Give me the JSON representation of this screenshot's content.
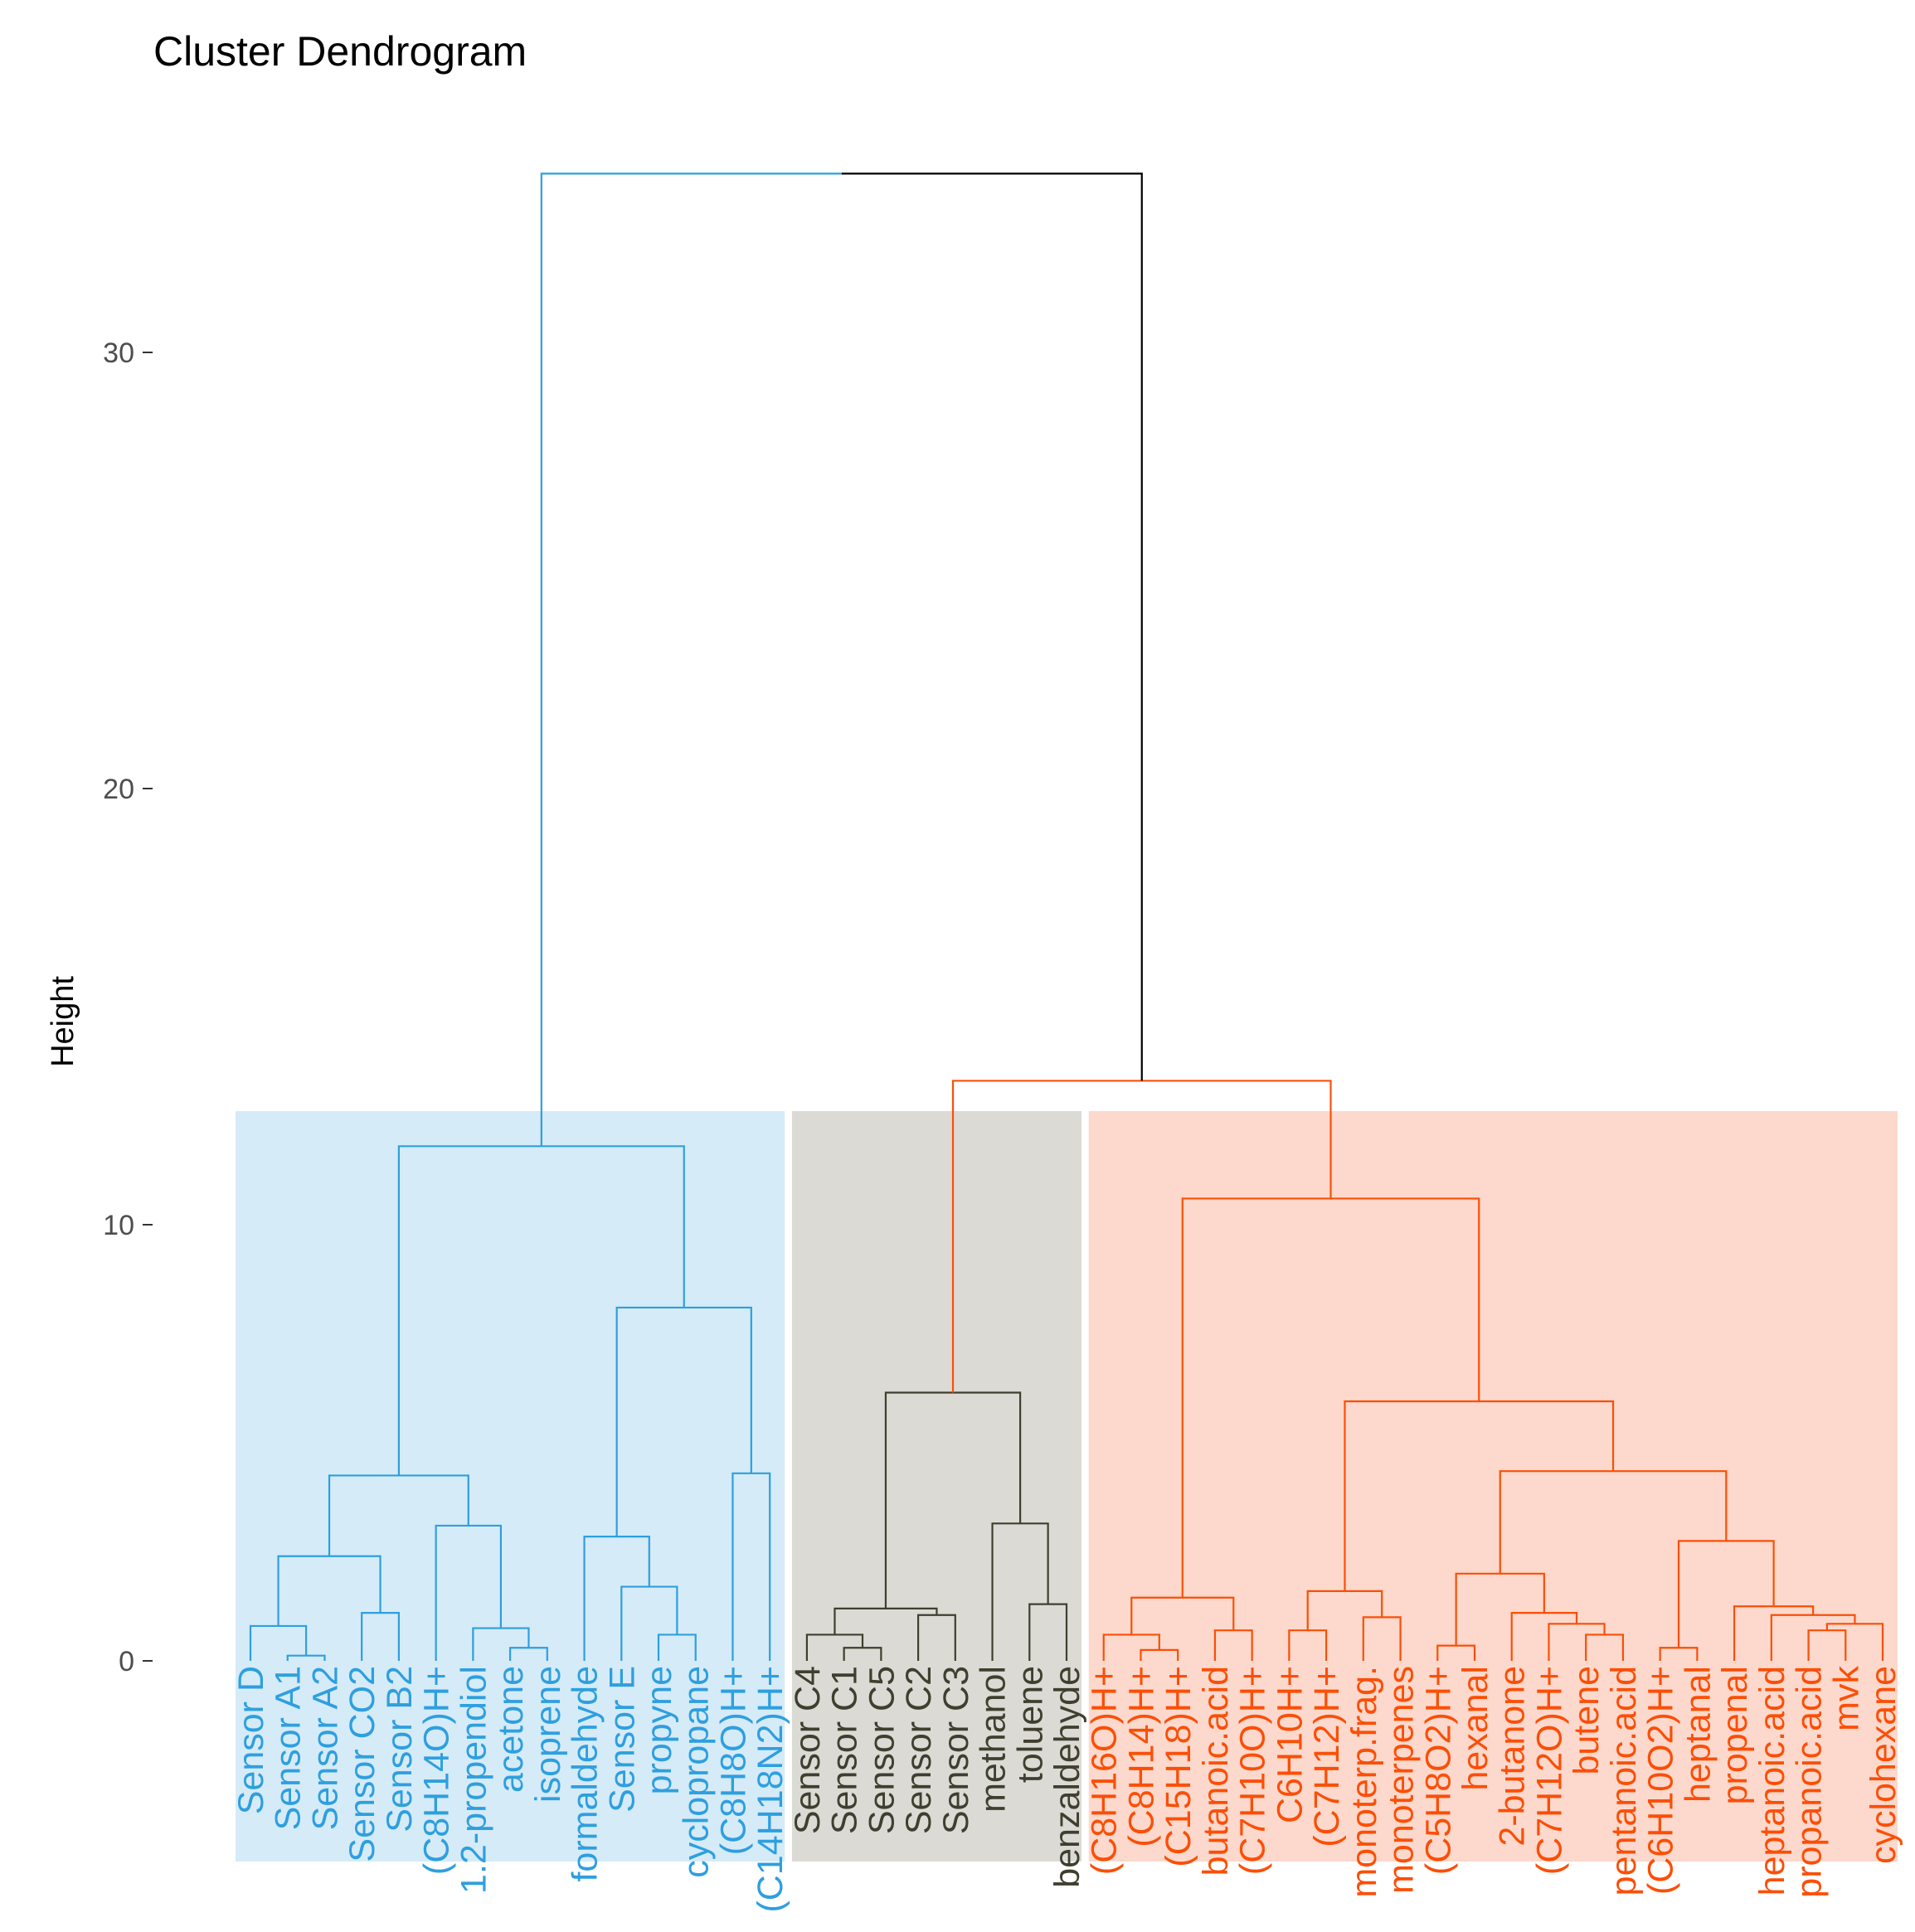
{
  "chart_data": {
    "type": "dendrogram",
    "title": "Cluster Dendrogram",
    "xlabel": "",
    "ylabel": "Height",
    "ylim": [
      -4.6,
      34.1
    ],
    "yticks": [
      0,
      10,
      20,
      30
    ],
    "grid": false,
    "colors": {
      "cluster1": "#2E9FDF",
      "cluster2": "#3F3F2F",
      "cluster3": "#FC4E07",
      "root": "#000000"
    },
    "rect_colors": {
      "cluster1": "#D5EBF7",
      "cluster2": "#DBDAD5",
      "cluster3": "#FCD9CC"
    },
    "clusters": [
      {
        "name": "cluster1",
        "first_leaf": 1,
        "last_leaf": 15
      },
      {
        "name": "cluster2",
        "first_leaf": 16,
        "last_leaf": 23
      },
      {
        "name": "cluster3",
        "first_leaf": 24,
        "last_leaf": 45
      }
    ],
    "leaves": [
      "Sensor D",
      "Sensor A1",
      "Sensor A2",
      "Sensor CO2",
      "Sensor B2",
      "(C8H14O)H+",
      "1.2-propendiol",
      "acetone",
      "isoprene",
      "formaldehyde",
      "Sensor E",
      "propyne",
      "cyclopropane",
      "(C8H8O)H+",
      "(C14H18N2)H+",
      "Sensor C4",
      "Sensor C1",
      "Sensor C5",
      "Sensor C2",
      "Sensor C3",
      "methanol",
      "toluene",
      "benzaldehyde",
      "(C8H16O)H+",
      "(C8H14)H+",
      "(C15H18)H+",
      "butanoic.acid",
      "(C7H10O)H+",
      "C6H10H+",
      "(C7H12)H+",
      "monoterp.frag.",
      "monoterpenes",
      "(C5H8O2)H+",
      "hexanal",
      "2-butanone",
      "(C7H12O)H+",
      "butene",
      "pentanoic.acid",
      "(C6H10O2)H+",
      "heptanal",
      "propenal",
      "heptanoic.acid",
      "propanoic.acid",
      "mvk",
      "cyclohexane"
    ],
    "merges": [
      {
        "l": 2,
        "r": 3,
        "h": 0.12,
        "c": "cluster1"
      },
      {
        "l": 1,
        "r": "m1",
        "h": 0.8,
        "c": "cluster1"
      },
      {
        "l": 4,
        "r": 5,
        "h": 1.1,
        "c": "cluster1"
      },
      {
        "l": "m2",
        "r": "m3",
        "h": 2.4,
        "c": "cluster1"
      },
      {
        "l": 8,
        "r": 9,
        "h": 0.3,
        "c": "cluster1"
      },
      {
        "l": 7,
        "r": "m5",
        "h": 0.75,
        "c": "cluster1"
      },
      {
        "l": 6,
        "r": "m6",
        "h": 3.1,
        "c": "cluster1"
      },
      {
        "l": "m4",
        "r": "m7",
        "h": 4.25,
        "c": "cluster1"
      },
      {
        "l": 12,
        "r": 13,
        "h": 0.6,
        "c": "cluster1"
      },
      {
        "l": 11,
        "r": "m9",
        "h": 1.7,
        "c": "cluster1"
      },
      {
        "l": 10,
        "r": "m10",
        "h": 2.85,
        "c": "cluster1"
      },
      {
        "l": 14,
        "r": 15,
        "h": 4.3,
        "c": "cluster1"
      },
      {
        "l": "m11",
        "r": "m12",
        "h": 8.1,
        "c": "cluster1"
      },
      {
        "l": "m8",
        "r": "m13",
        "h": 11.8,
        "c": "cluster1"
      },
      {
        "l": 17,
        "r": 18,
        "h": 0.3,
        "c": "cluster2"
      },
      {
        "l": 16,
        "r": "m15",
        "h": 0.6,
        "c": "cluster2"
      },
      {
        "l": 19,
        "r": 20,
        "h": 1.05,
        "c": "cluster2"
      },
      {
        "l": "m16",
        "r": "m17",
        "h": 1.2,
        "c": "cluster2"
      },
      {
        "l": 22,
        "r": 23,
        "h": 1.3,
        "c": "cluster2"
      },
      {
        "l": 21,
        "r": "m19",
        "h": 3.15,
        "c": "cluster2"
      },
      {
        "l": "m18",
        "r": "m20",
        "h": 6.15,
        "c": "cluster2"
      },
      {
        "l": 25,
        "r": 26,
        "h": 0.25,
        "c": "cluster3"
      },
      {
        "l": 24,
        "r": "m22",
        "h": 0.6,
        "c": "cluster3"
      },
      {
        "l": 27,
        "r": 28,
        "h": 0.7,
        "c": "cluster3"
      },
      {
        "l": "m23",
        "r": "m24",
        "h": 1.45,
        "c": "cluster3"
      },
      {
        "l": 29,
        "r": 30,
        "h": 0.7,
        "c": "cluster3"
      },
      {
        "l": 31,
        "r": 32,
        "h": 1.0,
        "c": "cluster3"
      },
      {
        "l": "m26",
        "r": "m27",
        "h": 1.6,
        "c": "cluster3"
      },
      {
        "l": 33,
        "r": 34,
        "h": 0.35,
        "c": "cluster3"
      },
      {
        "l": 37,
        "r": 38,
        "h": 0.6,
        "c": "cluster3"
      },
      {
        "l": 36,
        "r": "m30",
        "h": 0.85,
        "c": "cluster3"
      },
      {
        "l": 35,
        "r": "m31",
        "h": 1.1,
        "c": "cluster3"
      },
      {
        "l": "m29",
        "r": "m32",
        "h": 2.0,
        "c": "cluster3"
      },
      {
        "l": 39,
        "r": 40,
        "h": 0.3,
        "c": "cluster3"
      },
      {
        "l": 43,
        "r": 44,
        "h": 0.7,
        "c": "cluster3"
      },
      {
        "l": "m35",
        "r": 45,
        "h": 0.85,
        "c": "cluster3"
      },
      {
        "l": 42,
        "r": "m36",
        "h": 1.05,
        "c": "cluster3"
      },
      {
        "l": 41,
        "r": "m37",
        "h": 1.25,
        "c": "cluster3"
      },
      {
        "l": "m34",
        "r": "m38",
        "h": 2.75,
        "c": "cluster3"
      },
      {
        "l": "m33",
        "r": "m39",
        "h": 4.35,
        "c": "cluster3"
      },
      {
        "l": "m28",
        "r": "m40",
        "h": 5.95,
        "c": "cluster3"
      },
      {
        "l": "m25",
        "r": "m41",
        "h": 10.6,
        "c": "cluster3"
      },
      {
        "l": "m21",
        "r": "m42",
        "h": 13.3,
        "c": "cluster3"
      },
      {
        "l": "m14",
        "r": "m43",
        "h": 34.1,
        "c": "root"
      }
    ]
  }
}
